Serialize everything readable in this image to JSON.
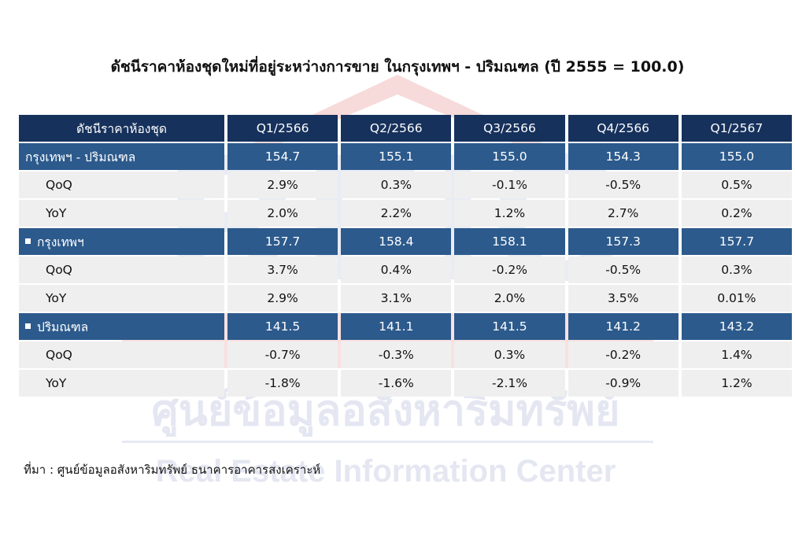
{
  "title": "ดัชนีราคาห้องชุดใหม่ที่อยู่ระหว่างการขาย ในกรุงเทพฯ - ปริมณฑล (ปี 2555 = 100.0)",
  "watermark": {
    "logo_text": "REIC",
    "thai_name": "ศูนย์ข้อมูลอสังหาริมทรัพย์",
    "english_name": "Real Estate Information Center"
  },
  "table": {
    "header": [
      "ดัชนีราคาห้องชุด",
      "Q1/2566",
      "Q2/2566",
      "Q3/2566",
      "Q4/2566",
      "Q1/2567"
    ],
    "groups": [
      {
        "label": "กรุงเทพฯ - ปริมณฑล",
        "bullet": false,
        "values": [
          "154.7",
          "155.1",
          "155.0",
          "154.3",
          "155.0"
        ],
        "qoq_label": "QoQ",
        "qoq": [
          "2.9%",
          "0.3%",
          "-0.1%",
          "-0.5%",
          "0.5%"
        ],
        "yoy_label": "YoY",
        "yoy": [
          "2.0%",
          "2.2%",
          "1.2%",
          "2.7%",
          "0.2%"
        ]
      },
      {
        "label": "กรุงเทพฯ",
        "bullet": true,
        "values": [
          "157.7",
          "158.4",
          "158.1",
          "157.3",
          "157.7"
        ],
        "qoq_label": "QoQ",
        "qoq": [
          "3.7%",
          "0.4%",
          "-0.2%",
          "-0.5%",
          "0.3%"
        ],
        "yoy_label": "YoY",
        "yoy": [
          "2.9%",
          "3.1%",
          "2.0%",
          "3.5%",
          "0.01%"
        ]
      },
      {
        "label": "ปริมณฑล",
        "bullet": true,
        "values": [
          "141.5",
          "141.1",
          "141.5",
          "141.2",
          "143.2"
        ],
        "qoq_label": "QoQ",
        "qoq": [
          "-0.7%",
          "-0.3%",
          "0.3%",
          "-0.2%",
          "1.4%"
        ],
        "yoy_label": "YoY",
        "yoy": [
          "-1.8%",
          "-1.6%",
          "-2.1%",
          "-0.9%",
          "1.2%"
        ]
      }
    ]
  },
  "source": "ที่มา : ศูนย์ข้อมูลอสังหาริมทรัพย์ ธนาคารอาคารสงเคราะห์",
  "colors": {
    "header_bg": "#16315c",
    "group_bg": "#2c5a8c",
    "sub_bg": "#efefef",
    "negative": "#e02020"
  }
}
